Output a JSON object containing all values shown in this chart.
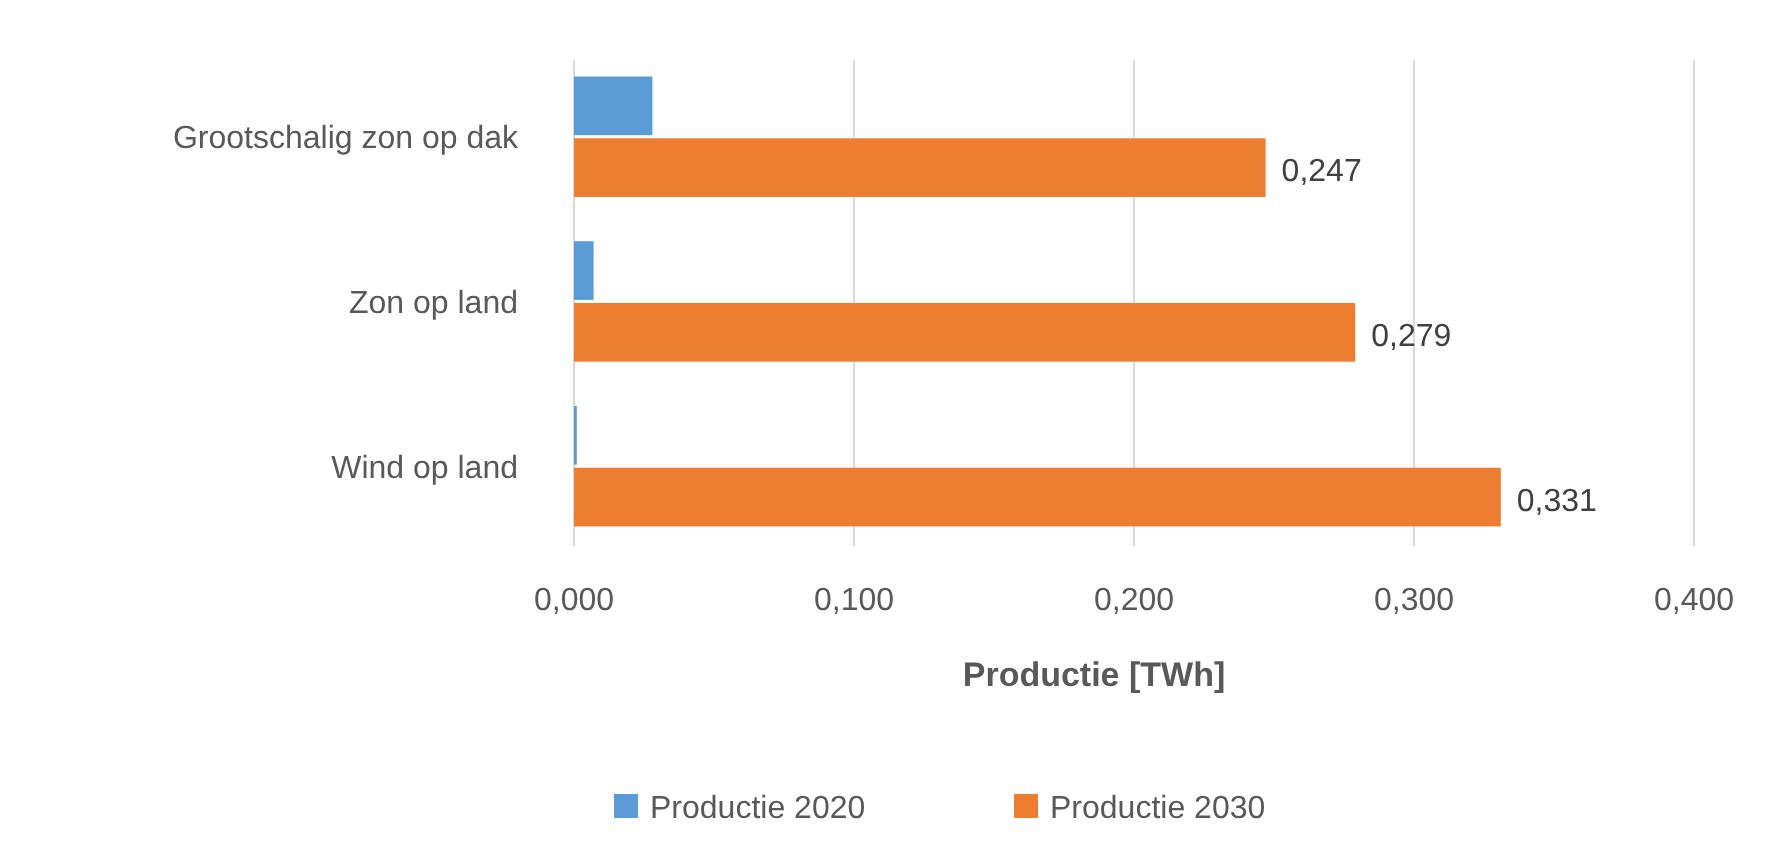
{
  "chart_data": {
    "type": "bar",
    "orientation": "horizontal",
    "xlabel": "Productie [TWh]",
    "categories": [
      "Grootschalig zon op dak",
      "Zon op land",
      "Wind op land"
    ],
    "series": [
      {
        "name": "Productie 2020",
        "color": "#5b9bd5",
        "values": [
          0.028,
          0.007,
          0.001
        ]
      },
      {
        "name": "Productie 2030",
        "color": "#ed7d31",
        "values": [
          0.247,
          0.279,
          0.331
        ],
        "value_labels": [
          "0,247",
          "0,279",
          "0,331"
        ]
      }
    ],
    "xlim": [
      0,
      0.4
    ],
    "xticks": [
      {
        "value": 0,
        "label": "0,000"
      },
      {
        "value": 0.1,
        "label": "0,100"
      },
      {
        "value": 0.2,
        "label": "0,200"
      },
      {
        "value": 0.3,
        "label": "0,300"
      },
      {
        "value": 0.4,
        "label": "0,400"
      }
    ],
    "grid": "x",
    "legend": "bottom"
  }
}
